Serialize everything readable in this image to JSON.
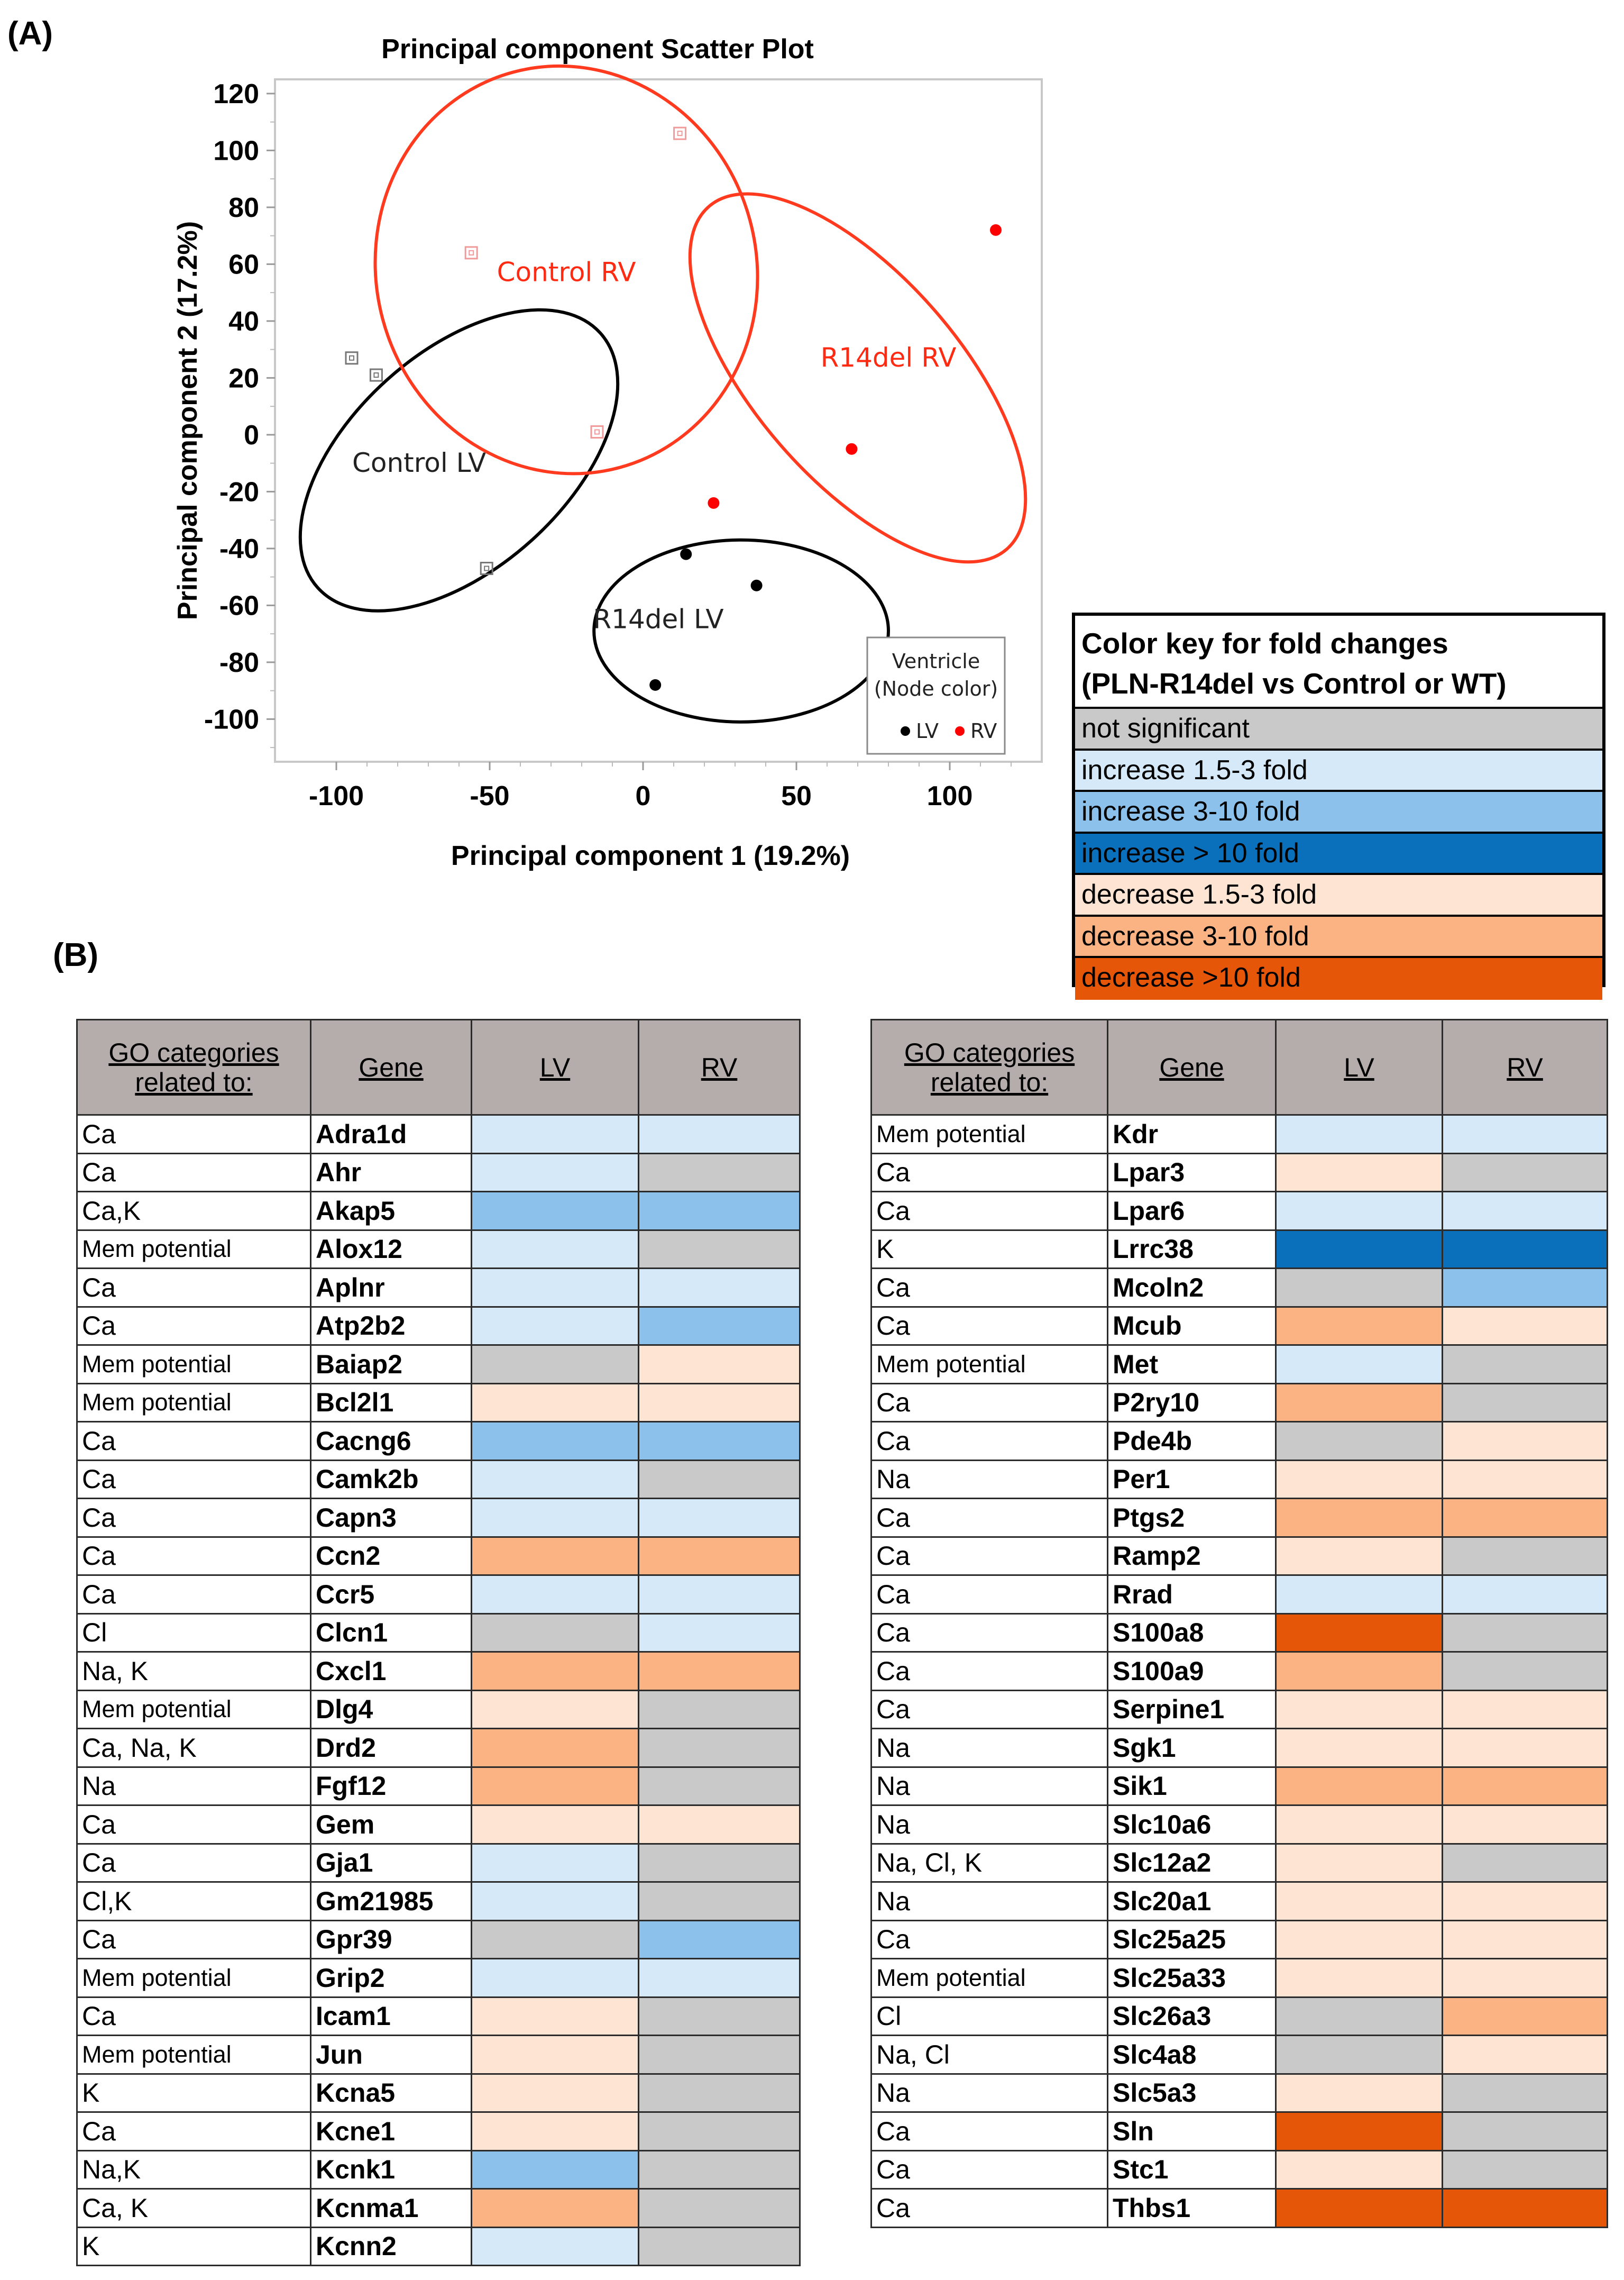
{
  "panel_labels": {
    "a": "(A)",
    "b": "(B)"
  },
  "colors": {
    "not_significant": "#c9c9c9",
    "increase_1.5_3": "#d6e9f8",
    "increase_3_10": "#8bc1ea",
    "increase_gt_10": "#0a70bb",
    "decrease_1.5_3": "#fde4d3",
    "decrease_3_10": "#fbb383",
    "decrease_gt_10": "#e65608",
    "lv_point": "#000000",
    "rv_point": "#ff0000",
    "control_rv_point": "#f29a9a",
    "control_lv_point": "#777777",
    "red_group": "#ff3a1f",
    "black_group": "#000000"
  },
  "chart_data": {
    "type": "scatter",
    "title": "Principal component Scatter Plot",
    "xlabel": "Principal component 1 (19.2%)",
    "ylabel": "Principal component 2 (17.2%)",
    "xlim": [
      -120,
      130
    ],
    "ylim": [
      -115,
      125
    ],
    "xticks": [
      -100,
      -50,
      0,
      50,
      100
    ],
    "yticks": [
      120,
      100,
      80,
      60,
      40,
      20,
      0,
      -20,
      -40,
      -60,
      -80,
      -100
    ],
    "series": [
      {
        "name": "Control LV",
        "ventricle": "LV",
        "marker": "open-square",
        "color": "#777777",
        "points": [
          [
            -95,
            27
          ],
          [
            -87,
            21
          ],
          [
            -51,
            -47
          ]
        ]
      },
      {
        "name": "Control RV",
        "ventricle": "RV",
        "marker": "open-square",
        "color": "#f29a9a",
        "points": [
          [
            -56,
            64
          ],
          [
            12,
            106
          ],
          [
            -15,
            1
          ]
        ]
      },
      {
        "name": "R14del LV",
        "ventricle": "LV",
        "marker": "filled-circle",
        "color": "#000000",
        "points": [
          [
            14,
            -42
          ],
          [
            37,
            -53
          ],
          [
            4,
            -88
          ]
        ]
      },
      {
        "name": "R14del RV",
        "ventricle": "RV",
        "marker": "filled-circle",
        "color": "#ff0000",
        "points": [
          [
            115,
            72
          ],
          [
            68,
            -5
          ],
          [
            23,
            -24
          ]
        ]
      }
    ],
    "groups": [
      {
        "label": "Control LV",
        "color": "black",
        "cx": -60,
        "cy": -9,
        "rx": 62,
        "ry": 38,
        "rotate": 42
      },
      {
        "label": "Control RV",
        "color": "red",
        "cx": -25,
        "cy": 58,
        "rx": 62,
        "ry": 72,
        "rotate": 15
      },
      {
        "label": "R14del RV",
        "color": "red",
        "cx": 70,
        "cy": 20,
        "rx": 74,
        "ry": 36,
        "rotate": -49
      },
      {
        "label": "R14del LV",
        "color": "black",
        "cx": 32,
        "cy": -69,
        "rx": 48,
        "ry": 32,
        "rotate": 0
      }
    ],
    "legend": {
      "title_line1": "Ventricle",
      "title_line2": "(Node color)",
      "lv": "LV",
      "rv": "RV",
      "position": "bottom-right"
    }
  },
  "color_key": {
    "title_line1": "Color key for fold changes",
    "title_line2": "(PLN-R14del vs Control or WT)",
    "rows": [
      {
        "label": "not significant",
        "code": "ns"
      },
      {
        "label": "increase 1.5-3 fold",
        "code": "i1"
      },
      {
        "label": "increase 3-10 fold",
        "code": "i2"
      },
      {
        "label": "increase > 10 fold",
        "code": "i3"
      },
      {
        "label": "decrease 1.5-3 fold",
        "code": "d1"
      },
      {
        "label": "decrease 3-10 fold",
        "code": "d2"
      },
      {
        "label": "decrease >10 fold",
        "code": "d3"
      }
    ]
  },
  "gene_table": {
    "headers": {
      "go_line1": "GO categories",
      "go_line2": "related to:",
      "gene": "Gene",
      "lv": "LV",
      "rv": "RV"
    },
    "left": [
      {
        "go": "Ca",
        "gene": "Adra1d",
        "lv": "i1",
        "rv": "i1"
      },
      {
        "go": "Ca",
        "gene": "Ahr",
        "lv": "i1",
        "rv": "ns"
      },
      {
        "go": "Ca,K",
        "gene": "Akap5",
        "lv": "i2",
        "rv": "i2"
      },
      {
        "go": "Mem potential",
        "gene": "Alox12",
        "lv": "i1",
        "rv": "ns"
      },
      {
        "go": "Ca",
        "gene": "Aplnr",
        "lv": "i1",
        "rv": "i1"
      },
      {
        "go": "Ca",
        "gene": "Atp2b2",
        "lv": "i1",
        "rv": "i2"
      },
      {
        "go": "Mem potential",
        "gene": "Baiap2",
        "lv": "ns",
        "rv": "d1"
      },
      {
        "go": "Mem potential",
        "gene": "Bcl2l1",
        "lv": "d1",
        "rv": "d1"
      },
      {
        "go": "Ca",
        "gene": "Cacng6",
        "lv": "i2",
        "rv": "i2"
      },
      {
        "go": "Ca",
        "gene": "Camk2b",
        "lv": "i1",
        "rv": "ns"
      },
      {
        "go": "Ca",
        "gene": "Capn3",
        "lv": "i1",
        "rv": "i1"
      },
      {
        "go": "Ca",
        "gene": "Ccn2",
        "lv": "d2",
        "rv": "d2"
      },
      {
        "go": "Ca",
        "gene": "Ccr5",
        "lv": "i1",
        "rv": "i1"
      },
      {
        "go": "Cl",
        "gene": "Clcn1",
        "lv": "ns",
        "rv": "i1"
      },
      {
        "go": "Na, K",
        "gene": "Cxcl1",
        "lv": "d2",
        "rv": "d2"
      },
      {
        "go": "Mem potential",
        "gene": "Dlg4",
        "lv": "d1",
        "rv": "ns"
      },
      {
        "go": "Ca, Na, K",
        "gene": "Drd2",
        "lv": "d2",
        "rv": "ns"
      },
      {
        "go": "Na",
        "gene": "Fgf12",
        "lv": "d2",
        "rv": "ns"
      },
      {
        "go": "Ca",
        "gene": "Gem",
        "lv": "d1",
        "rv": "d1"
      },
      {
        "go": "Ca",
        "gene": "Gja1",
        "lv": "i1",
        "rv": "ns"
      },
      {
        "go": "Cl,K",
        "gene": "Gm21985",
        "lv": "i1",
        "rv": "ns"
      },
      {
        "go": "Ca",
        "gene": "Gpr39",
        "lv": "ns",
        "rv": "i2"
      },
      {
        "go": "Mem potential",
        "gene": "Grip2",
        "lv": "i1",
        "rv": "i1"
      },
      {
        "go": "Ca",
        "gene": "Icam1",
        "lv": "d1",
        "rv": "ns"
      },
      {
        "go": "Mem potential",
        "gene": "Jun",
        "lv": "d1",
        "rv": "ns"
      },
      {
        "go": "K",
        "gene": "Kcna5",
        "lv": "d1",
        "rv": "ns"
      },
      {
        "go": "Ca",
        "gene": "Kcne1",
        "lv": "d1",
        "rv": "ns"
      },
      {
        "go": "Na,K",
        "gene": "Kcnk1",
        "lv": "i2",
        "rv": "ns"
      },
      {
        "go": "Ca, K",
        "gene": "Kcnma1",
        "lv": "d2",
        "rv": "ns"
      },
      {
        "go": "K",
        "gene": "Kcnn2",
        "lv": "i1",
        "rv": "ns"
      }
    ],
    "right": [
      {
        "go": "Mem potential",
        "gene": "Kdr",
        "lv": "i1",
        "rv": "i1"
      },
      {
        "go": "Ca",
        "gene": "Lpar3",
        "lv": "d1",
        "rv": "ns"
      },
      {
        "go": "Ca",
        "gene": "Lpar6",
        "lv": "i1",
        "rv": "i1"
      },
      {
        "go": "K",
        "gene": "Lrrc38",
        "lv": "i3",
        "rv": "i3"
      },
      {
        "go": "Ca",
        "gene": "Mcoln2",
        "lv": "ns",
        "rv": "i2"
      },
      {
        "go": "Ca",
        "gene": "Mcub",
        "lv": "d2",
        "rv": "d1"
      },
      {
        "go": "Mem potential",
        "gene": "Met",
        "lv": "i1",
        "rv": "ns"
      },
      {
        "go": "Ca",
        "gene": "P2ry10",
        "lv": "d2",
        "rv": "ns"
      },
      {
        "go": "Ca",
        "gene": "Pde4b",
        "lv": "ns",
        "rv": "d1"
      },
      {
        "go": "Na",
        "gene": "Per1",
        "lv": "d1",
        "rv": "d1"
      },
      {
        "go": "Ca",
        "gene": "Ptgs2",
        "lv": "d2",
        "rv": "d2"
      },
      {
        "go": "Ca",
        "gene": "Ramp2",
        "lv": "d1",
        "rv": "ns"
      },
      {
        "go": "Ca",
        "gene": "Rrad",
        "lv": "i1",
        "rv": "i1"
      },
      {
        "go": "Ca",
        "gene": "S100a8",
        "lv": "d3",
        "rv": "ns"
      },
      {
        "go": "Ca",
        "gene": "S100a9",
        "lv": "d2",
        "rv": "ns"
      },
      {
        "go": "Ca",
        "gene": "Serpine1",
        "lv": "d1",
        "rv": "d1"
      },
      {
        "go": "Na",
        "gene": "Sgk1",
        "lv": "d1",
        "rv": "d1"
      },
      {
        "go": "Na",
        "gene": "Sik1",
        "lv": "d2",
        "rv": "d2"
      },
      {
        "go": "Na",
        "gene": "Slc10a6",
        "lv": "d1",
        "rv": "d1"
      },
      {
        "go": "Na, Cl, K",
        "gene": "Slc12a2",
        "lv": "d1",
        "rv": "ns"
      },
      {
        "go": "Na",
        "gene": "Slc20a1",
        "lv": "d1",
        "rv": "d1"
      },
      {
        "go": "Ca",
        "gene": "Slc25a25",
        "lv": "d1",
        "rv": "d1"
      },
      {
        "go": "Mem potential",
        "gene": "Slc25a33",
        "lv": "d1",
        "rv": "d1"
      },
      {
        "go": "Cl",
        "gene": "Slc26a3",
        "lv": "ns",
        "rv": "d2"
      },
      {
        "go": "Na, Cl",
        "gene": "Slc4a8",
        "lv": "ns",
        "rv": "d1"
      },
      {
        "go": "Na",
        "gene": "Slc5a3",
        "lv": "d1",
        "rv": "ns"
      },
      {
        "go": "Ca",
        "gene": "Sln",
        "lv": "d3",
        "rv": "ns"
      },
      {
        "go": "Ca",
        "gene": "Stc1",
        "lv": "d1",
        "rv": "ns"
      },
      {
        "go": "Ca",
        "gene": "Thbs1",
        "lv": "d3",
        "rv": "d3"
      }
    ]
  }
}
